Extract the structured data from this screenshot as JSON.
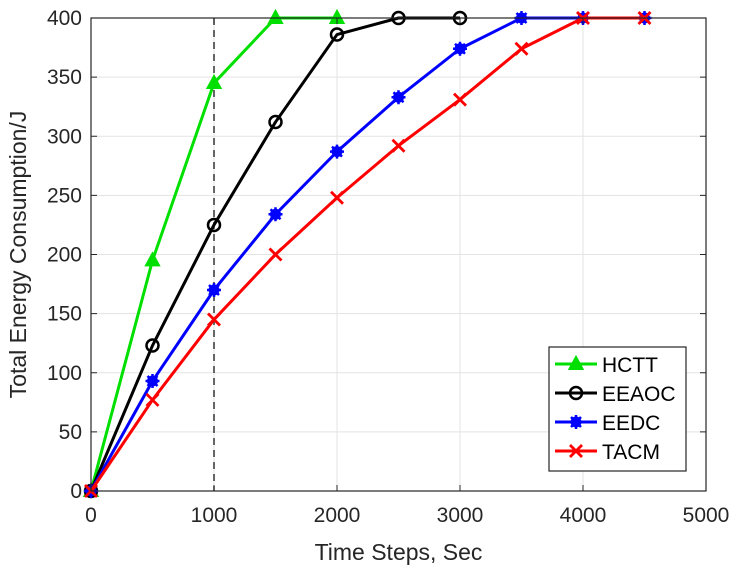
{
  "chart_data": {
    "type": "line",
    "title": "",
    "xlabel": "Time Steps, Sec",
    "ylabel": "Total Energy Consumption/J",
    "xlim": [
      0,
      5000
    ],
    "ylim": [
      0,
      400
    ],
    "xticks": [
      0,
      1000,
      2000,
      3000,
      4000,
      5000
    ],
    "yticks": [
      0,
      50,
      100,
      150,
      200,
      250,
      300,
      350,
      400
    ],
    "grid": true,
    "legend_position": "lower right",
    "annotations": [
      {
        "type": "vertical-dashed-line",
        "x": 1000
      }
    ],
    "series": [
      {
        "name": "HCTT",
        "color": "#00e000",
        "marker": "triangle",
        "x": [
          0,
          500,
          1000,
          1500,
          2000
        ],
        "values": [
          0,
          195,
          345,
          400,
          400
        ]
      },
      {
        "name": "EEAOC",
        "color": "#000000",
        "marker": "circle",
        "x": [
          0,
          500,
          1000,
          1500,
          2000,
          2500,
          3000
        ],
        "values": [
          0,
          123,
          225,
          312,
          386,
          400,
          400
        ]
      },
      {
        "name": "EEDC",
        "color": "#0000ff",
        "marker": "asterisk",
        "x": [
          0,
          500,
          1000,
          1500,
          2000,
          2500,
          3000,
          3500,
          4000,
          4500
        ],
        "values": [
          0,
          93,
          170,
          234,
          287,
          333,
          374,
          400,
          400,
          400
        ]
      },
      {
        "name": "TACM",
        "color": "#ff0000",
        "marker": "x",
        "x": [
          0,
          500,
          1000,
          1500,
          2000,
          2500,
          3000,
          3500,
          4000,
          4500
        ],
        "values": [
          0,
          77,
          145,
          200,
          248,
          292,
          331,
          374,
          400,
          400
        ]
      }
    ]
  }
}
